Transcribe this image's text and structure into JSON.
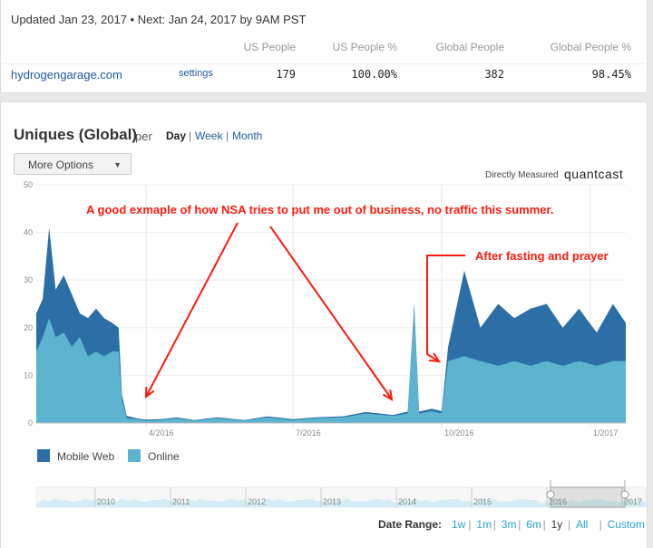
{
  "header": {
    "updated_text": "Updated Jan 23, 2017 • Next: Jan 24, 2017 by 9AM PST"
  },
  "stats_table": {
    "columns": [
      "US People",
      "US People %",
      "Global People",
      "Global People %"
    ],
    "row": {
      "site": "hydrogengarage.com",
      "settings_label": "settings",
      "us_people": "179",
      "us_people_pct": "100.00%",
      "global_people": "382",
      "global_people_pct": "98.45%"
    }
  },
  "panel": {
    "title": "Uniques (Global)",
    "per_label": "per",
    "periods": [
      "Day",
      "Week",
      "Month"
    ],
    "active_period": "Day",
    "more_options_label": "More Options",
    "directly_measured": "Directly Measured",
    "brand": "quantcast"
  },
  "annotations": {
    "headline": "A good exmaple of how NSA tries to put me out of business, no traffic this summer.",
    "after": "After fasting and prayer"
  },
  "legend": [
    {
      "label": "Mobile Web",
      "color": "#2b6fa6"
    },
    {
      "label": "Online",
      "color": "#5cb4d0"
    }
  ],
  "navigator": {
    "years": [
      "2010",
      "2011",
      "2012",
      "2013",
      "2014",
      "2015",
      "2016",
      "2017"
    ]
  },
  "date_range": {
    "label": "Date Range:",
    "options": [
      "1w",
      "1m",
      "3m",
      "6m",
      "1y",
      "All",
      "Custom"
    ],
    "selected": "1y"
  },
  "colors": {
    "mobile_web": "#2b6fa6",
    "online": "#5cb4d0",
    "annotation": "#ff1a0d",
    "link": "#1e5aa5"
  },
  "chart_data": {
    "type": "area",
    "stacked": true,
    "ylim": [
      0,
      50
    ],
    "yticks": [
      0,
      10,
      20,
      30,
      40,
      50
    ],
    "xticks": [
      "4/2016",
      "7/2016",
      "10/2016",
      "1/2017"
    ],
    "x_range": [
      "2016-01-24",
      "2017-01-23"
    ],
    "series": [
      {
        "name": "Online",
        "points": [
          [
            "2016-01-24",
            15
          ],
          [
            "2016-01-28",
            18
          ],
          [
            "2016-02-01",
            22
          ],
          [
            "2016-02-05",
            18
          ],
          [
            "2016-02-10",
            19
          ],
          [
            "2016-02-15",
            16
          ],
          [
            "2016-02-20",
            18
          ],
          [
            "2016-02-25",
            14
          ],
          [
            "2016-03-01",
            15
          ],
          [
            "2016-03-06",
            14
          ],
          [
            "2016-03-11",
            15
          ],
          [
            "2016-03-15",
            15
          ],
          [
            "2016-03-17",
            5
          ],
          [
            "2016-03-20",
            1
          ],
          [
            "2016-03-26",
            0.8
          ],
          [
            "2016-04-01",
            0.5
          ],
          [
            "2016-04-10",
            0.6
          ],
          [
            "2016-04-20",
            1
          ],
          [
            "2016-05-01",
            0.5
          ],
          [
            "2016-05-15",
            1
          ],
          [
            "2016-06-01",
            0.5
          ],
          [
            "2016-06-15",
            1.2
          ],
          [
            "2016-07-01",
            0.6
          ],
          [
            "2016-07-15",
            1
          ],
          [
            "2016-08-01",
            1.2
          ],
          [
            "2016-08-15",
            2
          ],
          [
            "2016-09-01",
            1.5
          ],
          [
            "2016-09-10",
            2
          ],
          [
            "2016-09-14",
            24
          ],
          [
            "2016-09-17",
            2
          ],
          [
            "2016-09-25",
            2.5
          ],
          [
            "2016-10-01",
            2
          ],
          [
            "2016-10-05",
            13
          ],
          [
            "2016-10-15",
            14
          ],
          [
            "2016-10-25",
            13
          ],
          [
            "2016-11-05",
            12
          ],
          [
            "2016-11-15",
            13
          ],
          [
            "2016-11-25",
            12
          ],
          [
            "2016-12-05",
            13
          ],
          [
            "2016-12-15",
            12
          ],
          [
            "2016-12-25",
            13
          ],
          [
            "2017-01-05",
            12
          ],
          [
            "2017-01-15",
            13
          ],
          [
            "2017-01-23",
            13
          ]
        ]
      },
      {
        "name": "Mobile Web",
        "points": [
          [
            "2016-01-24",
            23
          ],
          [
            "2016-01-28",
            26
          ],
          [
            "2016-02-01",
            41
          ],
          [
            "2016-02-05",
            28
          ],
          [
            "2016-02-10",
            31
          ],
          [
            "2016-02-15",
            27
          ],
          [
            "2016-02-20",
            23
          ],
          [
            "2016-02-25",
            22
          ],
          [
            "2016-03-01",
            24
          ],
          [
            "2016-03-06",
            22
          ],
          [
            "2016-03-11",
            21
          ],
          [
            "2016-03-15",
            20
          ],
          [
            "2016-03-17",
            6
          ],
          [
            "2016-03-20",
            1.5
          ],
          [
            "2016-03-26",
            1
          ],
          [
            "2016-04-01",
            0.7
          ],
          [
            "2016-04-10",
            0.8
          ],
          [
            "2016-04-20",
            1.2
          ],
          [
            "2016-05-01",
            0.6
          ],
          [
            "2016-05-15",
            1.2
          ],
          [
            "2016-06-01",
            0.6
          ],
          [
            "2016-06-15",
            1.4
          ],
          [
            "2016-07-01",
            0.8
          ],
          [
            "2016-07-15",
            1.2
          ],
          [
            "2016-08-01",
            1.4
          ],
          [
            "2016-08-15",
            2.3
          ],
          [
            "2016-09-01",
            1.7
          ],
          [
            "2016-09-10",
            2.4
          ],
          [
            "2016-09-14",
            25
          ],
          [
            "2016-09-17",
            2.4
          ],
          [
            "2016-09-25",
            3
          ],
          [
            "2016-10-01",
            2.5
          ],
          [
            "2016-10-05",
            16
          ],
          [
            "2016-10-15",
            32
          ],
          [
            "2016-10-25",
            20
          ],
          [
            "2016-11-05",
            25
          ],
          [
            "2016-11-15",
            22
          ],
          [
            "2016-11-25",
            24
          ],
          [
            "2016-12-05",
            25
          ],
          [
            "2016-12-15",
            20
          ],
          [
            "2016-12-25",
            24
          ],
          [
            "2017-01-05",
            19
          ],
          [
            "2017-01-15",
            25
          ],
          [
            "2017-01-23",
            21
          ]
        ]
      }
    ]
  }
}
